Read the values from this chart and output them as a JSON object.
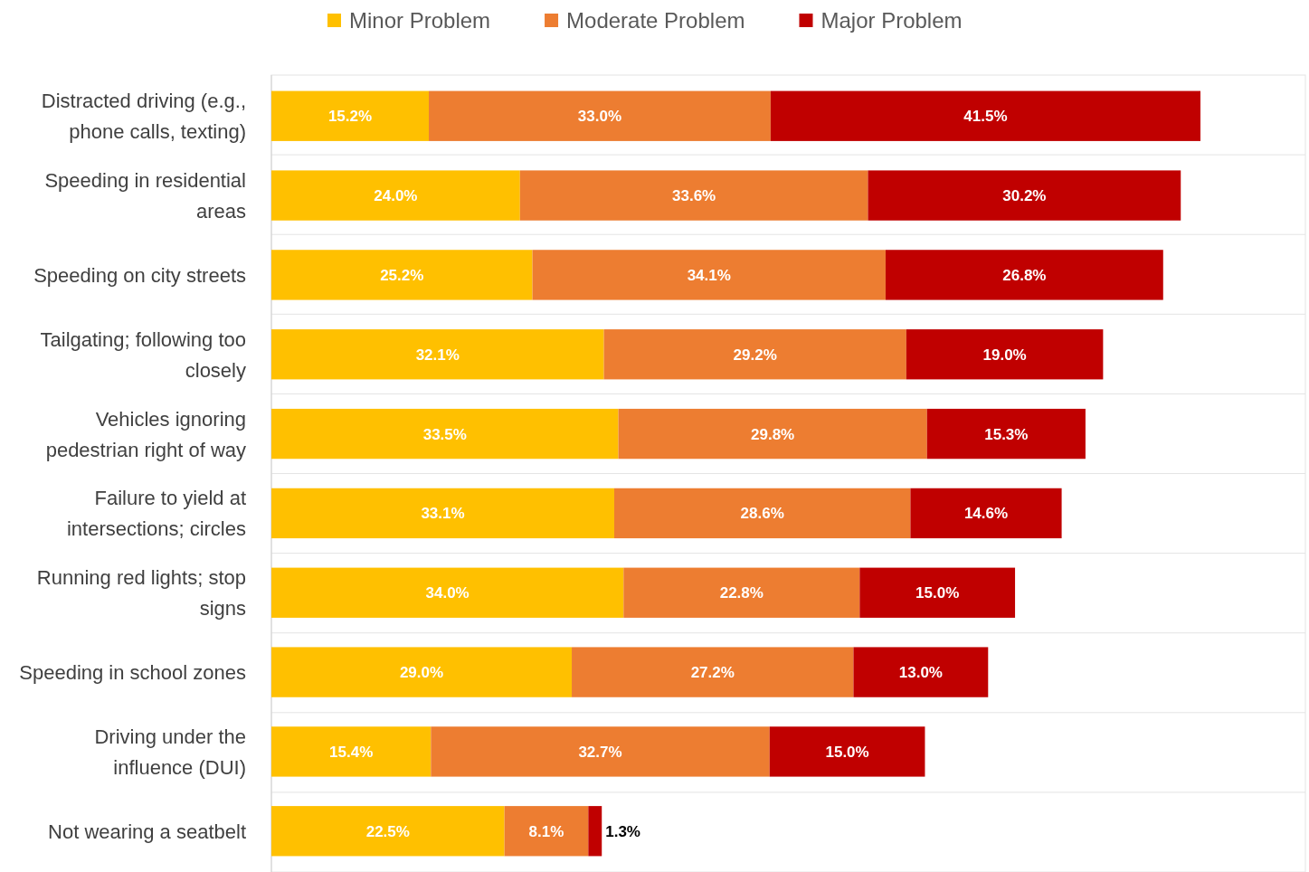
{
  "chart_data": {
    "type": "bar",
    "orientation": "horizontal",
    "stacked": true,
    "legend": "top",
    "grid": "y",
    "tick_labels": "y",
    "categories": [
      "Distracted driving (e.g., phone calls, texting)",
      "Speeding in residential areas",
      "Speeding on city streets",
      "Tailgating; following too closely",
      "Vehicles ignoring pedestrian right of way",
      "Failure to yield at intersections; circles",
      "Running red lights; stop signs",
      "Speeding in school zones",
      "Driving under the influence (DUI)",
      "Not wearing a seatbelt"
    ],
    "series": [
      {
        "name": "Minor Problem",
        "color": "#ffc000",
        "values": [
          15.2,
          24.0,
          25.2,
          32.1,
          33.5,
          33.1,
          34.0,
          29.0,
          15.4,
          22.5
        ],
        "value_labels": [
          "15.2%",
          "24.0%",
          "25.2%",
          "32.1%",
          "33.5%",
          "33.1%",
          "34.0%",
          "29.0%",
          "15.4%",
          "22.5%"
        ]
      },
      {
        "name": "Moderate Problem",
        "color": "#ed7d31",
        "values": [
          33.0,
          33.6,
          34.1,
          29.2,
          29.8,
          28.6,
          22.8,
          27.2,
          32.7,
          8.1
        ],
        "value_labels": [
          "33.0%",
          "33.6%",
          "34.1%",
          "29.2%",
          "29.8%",
          "28.6%",
          "22.8%",
          "27.2%",
          "32.7%",
          "8.1%"
        ]
      },
      {
        "name": "Major Problem",
        "color": "#c00000",
        "values": [
          41.5,
          30.2,
          26.8,
          19.0,
          15.3,
          14.6,
          15.0,
          13.0,
          15.0,
          1.3
        ],
        "value_labels": [
          "41.5%",
          "30.2%",
          "26.8%",
          "19.0%",
          "15.3%",
          "14.6%",
          "15.0%",
          "13.0%",
          "15.0%",
          "1.3%"
        ]
      }
    ]
  }
}
